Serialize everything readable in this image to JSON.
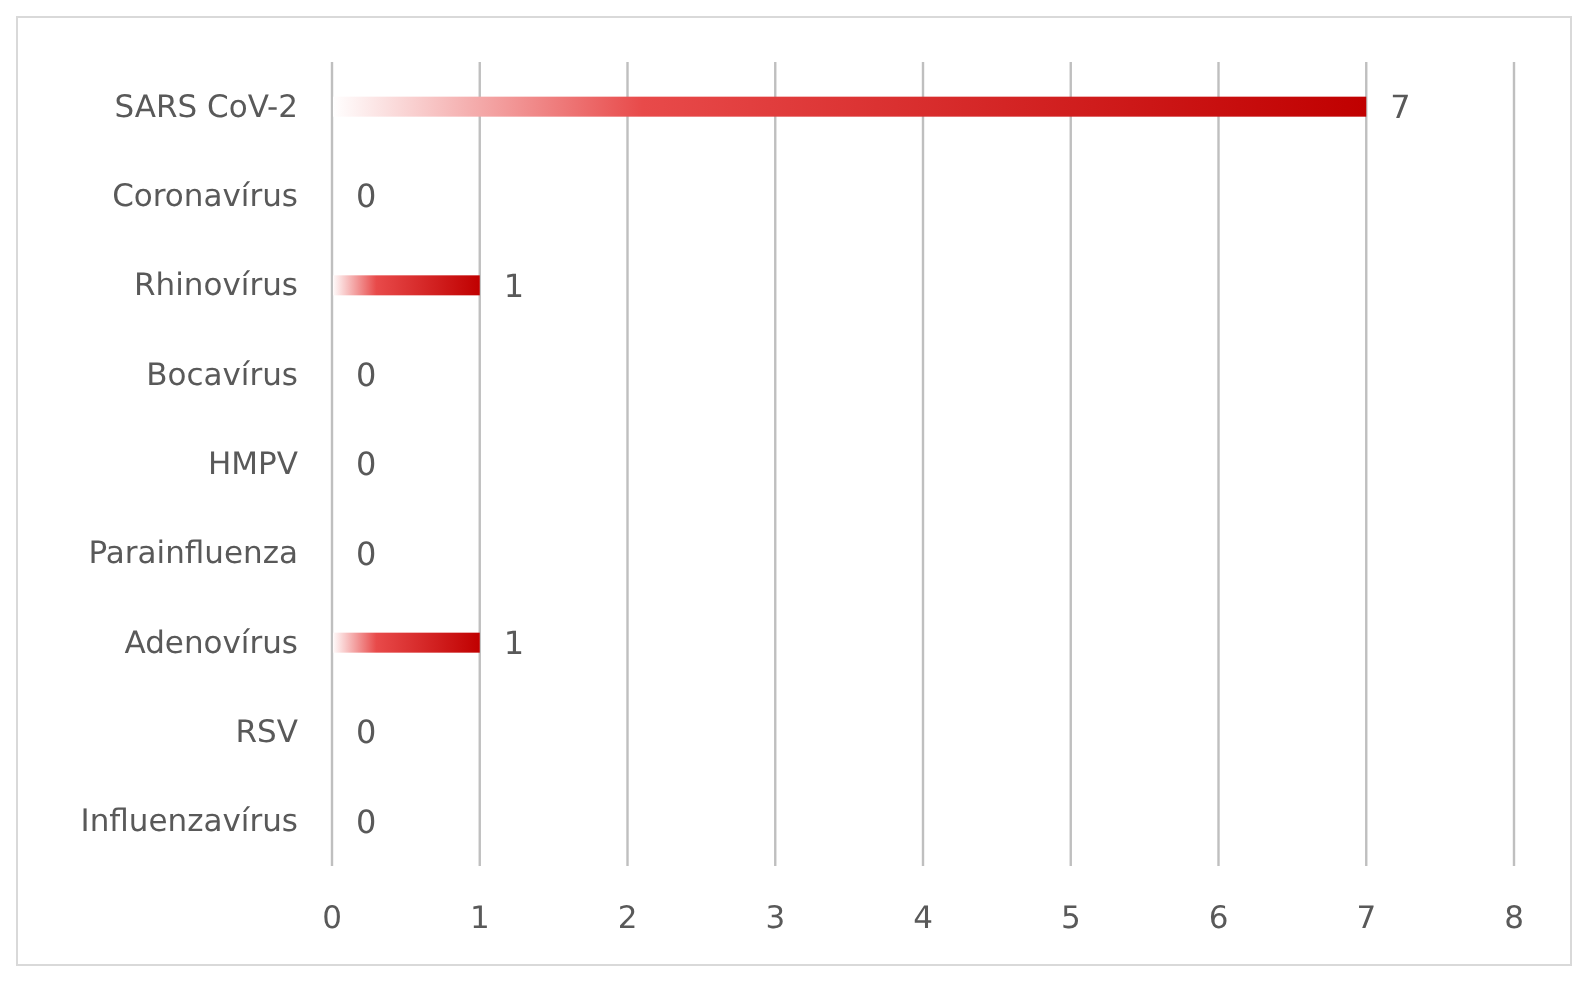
{
  "chart_data": {
    "type": "bar",
    "orientation": "horizontal",
    "categories": [
      "SARS CoV-2",
      "Coronavírus",
      "Rhinovírus",
      "Bocavírus",
      "HMPV",
      "Parainfluenza",
      "Adenovírus",
      "RSV",
      "Influenzavírus"
    ],
    "values": [
      7,
      0,
      1,
      0,
      0,
      0,
      1,
      0,
      0
    ],
    "color": "#c00000",
    "xlim": [
      0,
      8
    ],
    "xticks": [
      0,
      1,
      2,
      3,
      4,
      5,
      6,
      7,
      8
    ],
    "grid": "x",
    "data_labels": true
  }
}
